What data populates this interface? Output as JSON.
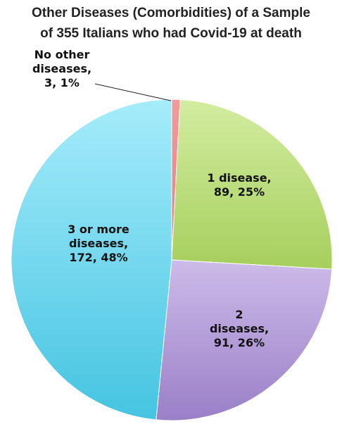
{
  "chart_data": {
    "type": "pie",
    "title_lines": [
      "Other Diseases (Comorbidities) of a Sample",
      "of 355 Italians who had Covid-19 at death"
    ],
    "start": "top",
    "direction": "clockwise",
    "slices": [
      {
        "name": "No other diseases",
        "count": 3,
        "percent": 1,
        "color": "#f39a9a",
        "dark": "#e07f7f",
        "label_lines": [
          "No other",
          "diseases,",
          "3, 1%"
        ]
      },
      {
        "name": "1 disease",
        "count": 89,
        "percent": 25,
        "color": "#d3eca0",
        "dark": "#a6cf5d",
        "label_lines": [
          "1 disease,",
          "89, 25%"
        ]
      },
      {
        "name": "2 diseases",
        "count": 91,
        "percent": 26,
        "color": "#cdbbe9",
        "dark": "#9a7fc7",
        "label_lines": [
          "2",
          "diseases,",
          "91, 26%"
        ]
      },
      {
        "name": "3 or more diseases",
        "count": 172,
        "percent": 48,
        "color": "#a6ecfb",
        "dark": "#45c4e1",
        "label_lines": [
          "3 or more",
          "diseases,",
          "172, 48%"
        ]
      }
    ]
  }
}
